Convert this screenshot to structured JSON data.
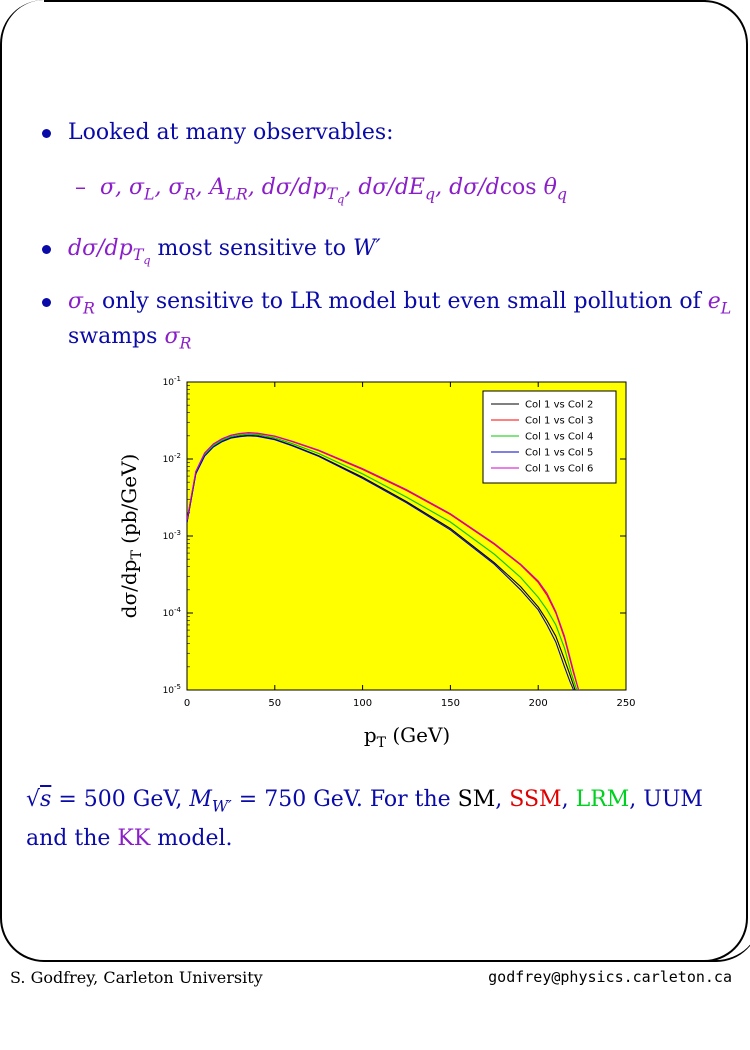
{
  "bullets": {
    "b1": "Looked at many observables:",
    "b1_sub": "σ, σ_L, σ_R, A_LR, dσ/dp_{T_q}, dσ/dE_q, dσ/d cos θ_q",
    "b2_text": "most sensitive to",
    "b3_text1": "only sensitive to LR model but even small pollution of",
    "b3_text2": "swamps"
  },
  "caption": {
    "line1_a": "= 500 GeV,",
    "line1_b": "= 750 GeV. For the",
    "sm": "SM",
    "ssm": "SSM",
    "lrm": "LRM",
    "uum": "UUM",
    "line2_a": "and the",
    "kk": "KK",
    "line2_b": "model."
  },
  "footer": {
    "left": "S. Godfrey, Carleton University",
    "right": "godfrey@physics.carleton.ca"
  },
  "colors": {
    "plot_bg": "#ffff00",
    "text_blue": "#0a0aa8",
    "text_purple": "#8a1ec8"
  },
  "chart_data": {
    "type": "line",
    "xlabel": "p_T  (GeV)",
    "ylabel": "dσ/dp_T (pb/GeV)",
    "xlim": [
      0,
      250
    ],
    "ylim": [
      1e-05,
      0.1
    ],
    "log_y": true,
    "x_ticks": [
      "0",
      "50",
      "100",
      "150",
      "200",
      "250"
    ],
    "y_ticks": [
      "10-1",
      "10-2",
      "10-3",
      "10-4",
      "10-5"
    ],
    "legend_position": "top-right",
    "series": [
      {
        "name": "Col 1 vs Col 2",
        "color": "#000000",
        "x": [
          0,
          5,
          10,
          15,
          20,
          25,
          30,
          35,
          40,
          50,
          60,
          75,
          100,
          125,
          150,
          175,
          190,
          200,
          205,
          210,
          215,
          218,
          221,
          223
        ],
        "y": [
          0.0015,
          0.0065,
          0.011,
          0.0145,
          0.017,
          0.019,
          0.0198,
          0.0203,
          0.02,
          0.018,
          0.015,
          0.011,
          0.0058,
          0.0028,
          0.00125,
          0.00045,
          0.00022,
          0.00012,
          8e-05,
          5e-05,
          2.5e-05,
          1.6e-05,
          1e-05,
          7e-06
        ]
      },
      {
        "name": "Col 1 vs Col 3",
        "color": "#ff0000",
        "x": [
          0,
          5,
          10,
          15,
          20,
          25,
          30,
          35,
          40,
          50,
          60,
          75,
          100,
          125,
          150,
          175,
          190,
          200,
          205,
          210,
          215,
          220,
          223,
          225
        ],
        "y": [
          0.0016,
          0.0068,
          0.0118,
          0.0155,
          0.0182,
          0.0202,
          0.0213,
          0.0218,
          0.0215,
          0.0197,
          0.0168,
          0.0128,
          0.0073,
          0.0039,
          0.0019,
          0.00078,
          0.00042,
          0.00025,
          0.00017,
          0.0001,
          4.7e-05,
          1.7e-05,
          1e-05,
          7e-06
        ]
      },
      {
        "name": "Col 1 vs Col 4",
        "color": "#00c800",
        "x": [
          0,
          5,
          10,
          15,
          20,
          25,
          30,
          35,
          40,
          50,
          60,
          75,
          100,
          125,
          150,
          175,
          190,
          200,
          205,
          210,
          215,
          219,
          222,
          224
        ],
        "y": [
          0.00155,
          0.0066,
          0.0113,
          0.0149,
          0.0175,
          0.0195,
          0.0205,
          0.021,
          0.0207,
          0.0188,
          0.0158,
          0.0118,
          0.0064,
          0.0032,
          0.00152,
          0.00058,
          0.00029,
          0.00016,
          0.00011,
          7e-05,
          3.5e-05,
          1.6e-05,
          1e-05,
          7e-06
        ]
      },
      {
        "name": "Col 1 vs Col 5",
        "color": "#0000c8",
        "x": [
          0,
          5,
          10,
          15,
          20,
          25,
          30,
          35,
          40,
          50,
          60,
          75,
          100,
          125,
          150,
          175,
          190,
          200,
          205,
          210,
          215,
          218,
          221,
          222
        ],
        "y": [
          0.0015,
          0.0064,
          0.0109,
          0.0143,
          0.0168,
          0.0187,
          0.0195,
          0.02,
          0.0197,
          0.0178,
          0.0148,
          0.0108,
          0.0056,
          0.0027,
          0.0012,
          0.00043,
          0.0002,
          0.00011,
          7e-05,
          4.2e-05,
          2e-05,
          1.3e-05,
          8e-06,
          7e-06
        ]
      },
      {
        "name": "Col 1 vs Col 6",
        "color": "#d000d0",
        "x": [
          0,
          5,
          10,
          15,
          20,
          25,
          30,
          35,
          40,
          50,
          60,
          75,
          100,
          125,
          150,
          175,
          190,
          200,
          205,
          210,
          215,
          220,
          223,
          225
        ],
        "y": [
          0.0016,
          0.0069,
          0.012,
          0.0157,
          0.0184,
          0.0204,
          0.0215,
          0.022,
          0.0217,
          0.0199,
          0.017,
          0.013,
          0.0075,
          0.004,
          0.00195,
          0.0008,
          0.00043,
          0.00026,
          0.00018,
          0.000105,
          5e-05,
          1.8e-05,
          1e-05,
          7e-06
        ]
      }
    ]
  }
}
